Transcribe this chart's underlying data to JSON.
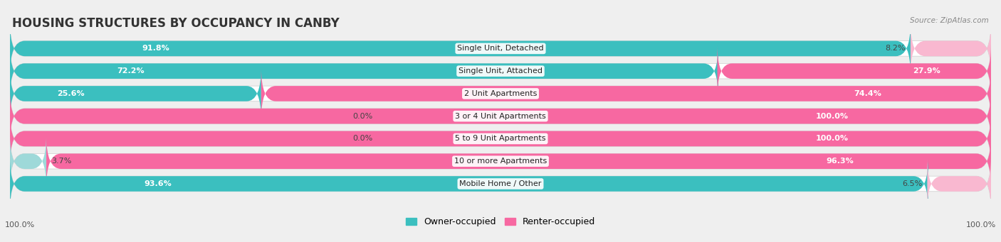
{
  "title": "HOUSING STRUCTURES BY OCCUPANCY IN CANBY",
  "source": "Source: ZipAtlas.com",
  "categories": [
    "Single Unit, Detached",
    "Single Unit, Attached",
    "2 Unit Apartments",
    "3 or 4 Unit Apartments",
    "5 to 9 Unit Apartments",
    "10 or more Apartments",
    "Mobile Home / Other"
  ],
  "owner_pct": [
    91.8,
    72.2,
    25.6,
    0.0,
    0.0,
    3.7,
    93.6
  ],
  "renter_pct": [
    8.2,
    27.9,
    74.4,
    100.0,
    100.0,
    96.3,
    6.5
  ],
  "owner_color": "#3bbfbf",
  "renter_color": "#f768a1",
  "owner_color_light": "#9ed9d9",
  "renter_color_light": "#f9b8d0",
  "bg_color": "#efefef",
  "bar_bg_color": "#e2e2e2",
  "title_fontsize": 12,
  "label_fontsize": 8,
  "pct_fontsize": 8,
  "bar_height": 0.68,
  "row_sep": 0.08,
  "x_left_label": "100.0%",
  "x_right_label": "100.0%",
  "legend_owner": "Owner-occupied",
  "legend_renter": "Renter-occupied"
}
